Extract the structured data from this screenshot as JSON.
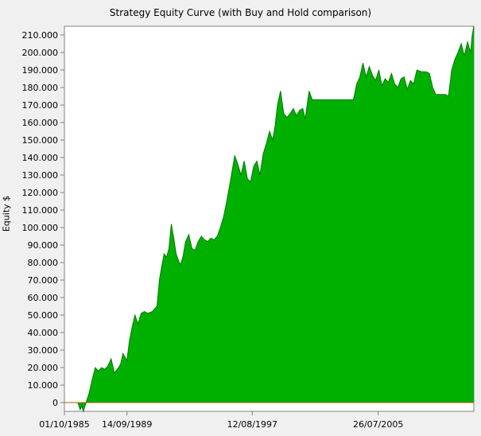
{
  "chart_data": {
    "type": "area",
    "title": "Strategy Equity Curve (with Buy and Hold comparison)",
    "xlabel": "",
    "ylabel": "Equity $",
    "ylim": [
      -5000,
      215000
    ],
    "xlim": [
      1985.75,
      2011.6
    ],
    "y_ticks": [
      0,
      10000,
      20000,
      30000,
      40000,
      50000,
      60000,
      70000,
      80000,
      90000,
      100000,
      110000,
      120000,
      130000,
      140000,
      150000,
      160000,
      170000,
      180000,
      190000,
      200000,
      210000
    ],
    "y_tick_labels": [
      "0",
      "10.000",
      "20.000",
      "30.000",
      "40.000",
      "50.000",
      "60.000",
      "70.000",
      "80.000",
      "90.000",
      "100.000",
      "110.000",
      "120.000",
      "130.000",
      "140.000",
      "150.000",
      "160.000",
      "170.000",
      "180.000",
      "190.000",
      "200.000",
      "210.000"
    ],
    "x_tick_labels": [
      {
        "date": 1985.75,
        "label": "01/10/1985"
      },
      {
        "date": 1989.7,
        "label": "14/09/1989"
      },
      {
        "date": 1997.61,
        "label": "12/08/1997"
      },
      {
        "date": 2005.56,
        "label": "26/07/2005"
      }
    ],
    "grid": false,
    "colors": {
      "fill": "#00b000",
      "stroke": "#007a00",
      "baseline": "#b05a00"
    },
    "series": [
      {
        "x": [
          1985.75,
          1986.6,
          1986.75,
          1986.85,
          1986.95,
          1987.15,
          1987.3,
          1987.5,
          1987.7,
          1987.9,
          1988.1,
          1988.3,
          1988.5,
          1988.7,
          1988.9,
          1989.1,
          1989.3,
          1989.45,
          1989.7,
          1989.85,
          1990.0,
          1990.2,
          1990.4,
          1990.6,
          1990.8,
          1991.0,
          1991.3,
          1991.6,
          1991.75,
          1991.9,
          1992.05,
          1992.2,
          1992.35,
          1992.5,
          1992.65,
          1992.8,
          1993.0,
          1993.1,
          1993.25,
          1993.4,
          1993.6,
          1993.8,
          1994.0,
          1994.2,
          1994.4,
          1994.6,
          1994.8,
          1995.0,
          1995.2,
          1995.4,
          1995.6,
          1995.8,
          1996.0,
          1996.2,
          1996.35,
          1996.5,
          1996.7,
          1996.9,
          1997.1,
          1997.3,
          1997.5,
          1997.7,
          1997.9,
          1998.1,
          1998.3,
          1998.5,
          1998.7,
          1998.9,
          1999.05,
          1999.2,
          1999.4,
          1999.6,
          1999.8,
          2000.0,
          2000.2,
          2000.4,
          2000.6,
          2000.8,
          2000.95,
          2001.0,
          2001.2,
          2001.4,
          2001.6,
          2001.75,
          2001.9,
          2002.0,
          2002.2,
          2002.4,
          2002.6,
          2002.8,
          2003.0,
          2003.2,
          2003.4,
          2003.6,
          2003.8,
          2004.0,
          2004.2,
          2004.4,
          2004.6,
          2004.8,
          2005.0,
          2005.2,
          2005.4,
          2005.6,
          2005.8,
          2006.0,
          2006.2,
          2006.4,
          2006.6,
          2006.8,
          2007.0,
          2007.2,
          2007.4,
          2007.6,
          2007.8,
          2008.0,
          2008.3,
          2008.6,
          2008.8,
          2009.0,
          2009.2,
          2009.4,
          2009.6,
          2009.8,
          2010.0,
          2010.2,
          2010.4,
          2010.6,
          2010.8,
          2011.0,
          2011.2,
          2011.4,
          2011.5,
          2011.6
        ],
        "y": [
          0,
          0,
          -4000,
          -2000,
          -5000,
          1000,
          5000,
          13000,
          20000,
          18000,
          20000,
          19000,
          21000,
          25000,
          17000,
          19000,
          22000,
          28000,
          24000,
          35000,
          42000,
          50000,
          45000,
          51000,
          52000,
          51000,
          52000,
          55000,
          70000,
          78000,
          85000,
          83000,
          88000,
          102000,
          94000,
          85000,
          80000,
          79000,
          84000,
          92000,
          96000,
          88000,
          87000,
          92000,
          95000,
          93000,
          92000,
          94000,
          93000,
          95000,
          100000,
          106000,
          115000,
          125000,
          133000,
          141000,
          136000,
          130000,
          138000,
          128000,
          126000,
          135000,
          138000,
          130000,
          142000,
          148000,
          155000,
          150000,
          158000,
          170000,
          178000,
          165000,
          163000,
          165000,
          168000,
          164000,
          167000,
          168000,
          162000,
          165000,
          178000,
          173000,
          173000,
          173000,
          173000,
          173000,
          173000,
          173000,
          173000,
          173000,
          173000,
          173000,
          173000,
          173000,
          173000,
          173000,
          182000,
          186000,
          194000,
          186000,
          192000,
          187000,
          184000,
          190000,
          181000,
          185000,
          183000,
          188000,
          182000,
          180000,
          185000,
          186000,
          179000,
          184000,
          182000,
          190000,
          189000,
          189000,
          188000,
          180000,
          176000,
          176000,
          176000,
          176000,
          175000,
          190000,
          196000,
          200000,
          205000,
          198000,
          206000,
          200000,
          210000,
          215000
        ]
      }
    ]
  }
}
